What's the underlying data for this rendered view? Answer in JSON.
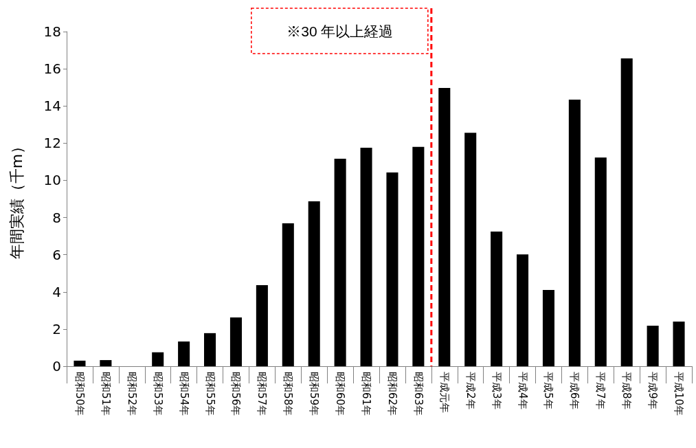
{
  "chart_data": {
    "type": "bar",
    "ylabel": "年間実績（千m）",
    "categories": [
      "昭和50年",
      "昭和51年",
      "昭和52年",
      "昭和53年",
      "昭和54年",
      "昭和55年",
      "昭和56年",
      "昭和57年",
      "昭和58年",
      "昭和59年",
      "昭和60年",
      "昭和61年",
      "昭和62年",
      "昭和63年",
      "平成元年",
      "平成2年",
      "平成3年",
      "平成4年",
      "平成5年",
      "平成6年",
      "平成7年",
      "平成8年",
      "平成9年",
      "平成10年"
    ],
    "values": [
      0.3,
      0.33,
      0,
      0.75,
      1.33,
      1.78,
      2.62,
      4.36,
      7.69,
      8.87,
      11.16,
      11.75,
      10.42,
      11.8,
      14.97,
      12.56,
      7.24,
      6.02,
      4.1,
      14.34,
      11.23,
      16.56,
      2.18,
      2.4
    ],
    "color": "#000000",
    "ylim": [
      0,
      18
    ],
    "yticks": [
      0,
      2,
      4,
      6,
      8,
      10,
      12,
      14,
      16,
      18
    ],
    "grid": false,
    "ref_lines": [
      {
        "axis": "x",
        "value": "平成元年",
        "label": "※30 年以上経過",
        "color": "#ff0000",
        "line_style": "dashed"
      }
    ]
  }
}
